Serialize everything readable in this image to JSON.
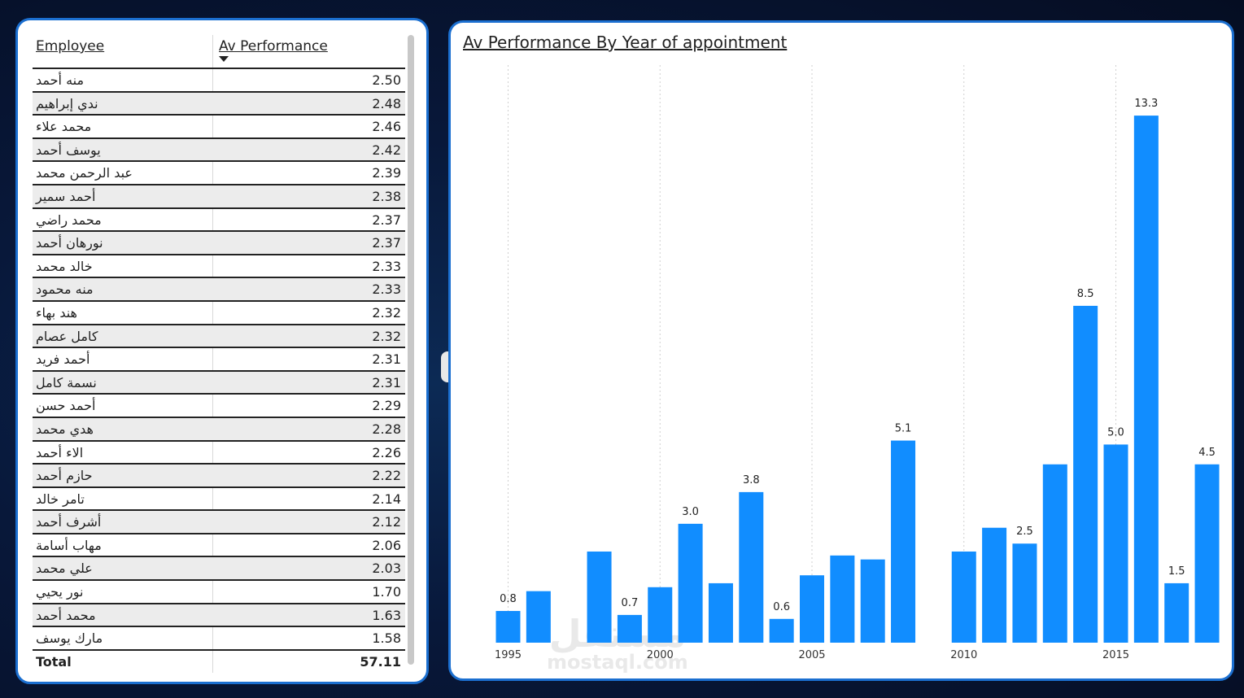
{
  "table": {
    "headers": {
      "employee": "Employee",
      "performance": "Av Performance"
    },
    "rows": [
      {
        "name": "منه أحمد",
        "value": "2.50"
      },
      {
        "name": "ندي إبراهيم",
        "value": "2.48"
      },
      {
        "name": "محمد علاء",
        "value": "2.46"
      },
      {
        "name": "يوسف أحمد",
        "value": "2.42"
      },
      {
        "name": "عبد الرحمن محمد",
        "value": "2.39"
      },
      {
        "name": "أحمد سمير",
        "value": "2.38"
      },
      {
        "name": "محمد راضي",
        "value": "2.37"
      },
      {
        "name": "نورهان أحمد",
        "value": "2.37"
      },
      {
        "name": "خالد محمد",
        "value": "2.33"
      },
      {
        "name": "منه محمود",
        "value": "2.33"
      },
      {
        "name": "هند بهاء",
        "value": "2.32"
      },
      {
        "name": "كامل عصام",
        "value": "2.32"
      },
      {
        "name": "أحمد فريد",
        "value": "2.31"
      },
      {
        "name": "نسمة كامل",
        "value": "2.31"
      },
      {
        "name": "أحمد حسن",
        "value": "2.29"
      },
      {
        "name": "هدي محمد",
        "value": "2.28"
      },
      {
        "name": "الاء أحمد",
        "value": "2.26"
      },
      {
        "name": "حازم أحمد",
        "value": "2.22"
      },
      {
        "name": "تامر خالد",
        "value": "2.14"
      },
      {
        "name": "أشرف أحمد",
        "value": "2.12"
      },
      {
        "name": "مهاب أسامة",
        "value": "2.06"
      },
      {
        "name": "علي محمد",
        "value": "2.03"
      },
      {
        "name": "نور يحيي",
        "value": "1.70"
      },
      {
        "name": "محمد أحمد",
        "value": "1.63"
      },
      {
        "name": "مارك يوسف",
        "value": "1.58"
      }
    ],
    "total": {
      "label": "Total",
      "value": "57.11"
    }
  },
  "chart_data": {
    "type": "bar",
    "title": "Av Performance By Year of appointment",
    "xlabel": "",
    "ylabel": "",
    "x_ticks": [
      "1995",
      "2000",
      "2005",
      "2010",
      "2015"
    ],
    "bar_color": "#118dff",
    "grid": "vertical dotted",
    "ylim": [
      0,
      14
    ],
    "x": [
      1995,
      1996,
      1998,
      1999,
      2000,
      2001,
      2002,
      2003,
      2004,
      2005,
      2006,
      2007,
      2008,
      2010,
      2011,
      2012,
      2013,
      2014,
      2015,
      2016,
      2017,
      2018
    ],
    "values": [
      0.8,
      1.3,
      2.3,
      0.7,
      1.4,
      3.0,
      1.5,
      3.8,
      0.6,
      1.7,
      2.2,
      2.1,
      5.1,
      2.3,
      2.9,
      2.5,
      4.5,
      8.5,
      5.0,
      13.3,
      1.5,
      4.5
    ],
    "data_labels": [
      {
        "x": 1995,
        "label": "0.8"
      },
      {
        "x": 1999,
        "label": "0.7"
      },
      {
        "x": 2001,
        "label": "3.0"
      },
      {
        "x": 2003,
        "label": "3.8"
      },
      {
        "x": 2004,
        "label": "0.6"
      },
      {
        "x": 2008,
        "label": "5.1"
      },
      {
        "x": 2012,
        "label": "2.5"
      },
      {
        "x": 2014,
        "label": "8.5"
      },
      {
        "x": 2015,
        "label": "5.0"
      },
      {
        "x": 2016,
        "label": "13.3"
      },
      {
        "x": 2017,
        "label": "1.5"
      },
      {
        "x": 2018,
        "label": "4.5"
      }
    ]
  },
  "watermark": {
    "arabic": "مستقل",
    "latin": "mostaql.com"
  }
}
